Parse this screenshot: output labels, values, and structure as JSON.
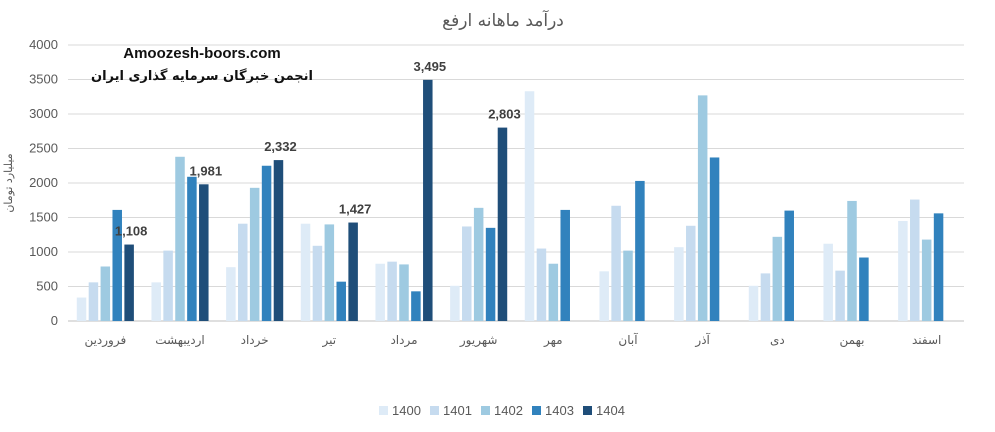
{
  "chart_data": {
    "type": "bar",
    "title": "درآمد ماهانه ارفع",
    "ylabel": "میلیارد تومان",
    "ylim": [
      0,
      4000
    ],
    "yticks": [
      "0",
      "500",
      "1000",
      "1500",
      "2000",
      "2500",
      "3000",
      "3500",
      "4000"
    ],
    "grid": true,
    "legend": "bottom",
    "categories": [
      "فروردین",
      "اردیبهشت",
      "خرداد",
      "تیر",
      "مرداد",
      "شهریور",
      "مهر",
      "آبان",
      "آذر",
      "دی",
      "بهمن",
      "اسفند"
    ],
    "series": [
      {
        "name": "1400",
        "color": "#deebf7",
        "values": [
          340,
          560,
          780,
          1410,
          830,
          510,
          3330,
          720,
          1070,
          510,
          1120,
          1450
        ]
      },
      {
        "name": "1401",
        "color": "#c6dbef",
        "values": [
          560,
          1020,
          1410,
          1090,
          860,
          1370,
          1050,
          1670,
          1380,
          690,
          730,
          1760
        ]
      },
      {
        "name": "1402",
        "color": "#9ecae1",
        "values": [
          790,
          2380,
          1930,
          1400,
          820,
          1640,
          830,
          1020,
          3270,
          1220,
          1740,
          1180
        ]
      },
      {
        "name": "1403",
        "color": "#3182bd",
        "values": [
          1610,
          2090,
          2250,
          570,
          430,
          1350,
          1610,
          2030,
          2370,
          1600,
          920,
          1560
        ]
      },
      {
        "name": "1404",
        "color": "#1f4e79",
        "values": [
          1108,
          1981,
          2332,
          1427,
          3495,
          2803,
          null,
          null,
          null,
          null,
          null,
          null
        ],
        "labels": [
          "1,108",
          "1,981",
          "2,332",
          "1,427",
          "3,495",
          "2,803"
        ]
      }
    ]
  },
  "watermark": {
    "site": "Amoozesh-boors.com",
    "org": "انجمن خبرگان سرمایه گذاری ایران"
  }
}
